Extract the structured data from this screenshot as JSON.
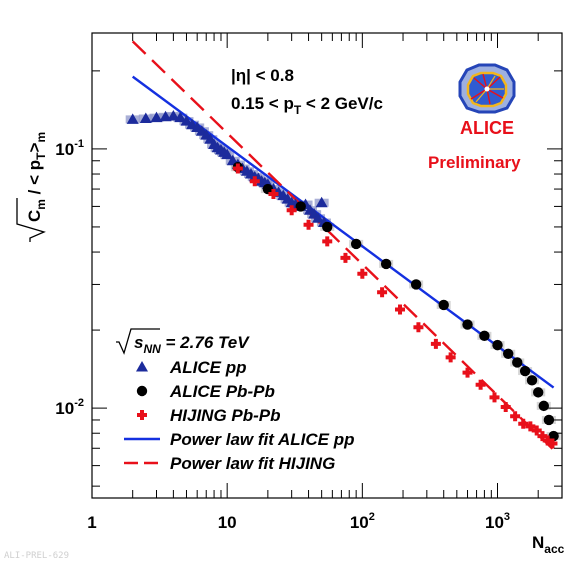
{
  "chart_data": {
    "type": "scatter",
    "xlabel": "N",
    "xlabel_sub": "acc",
    "ylabel_parts": {
      "root": "C",
      "root_sub": "m",
      "rest": " / < p",
      "rest_sub": "T",
      "close": ">",
      "close_sub": "m"
    },
    "xscale": "log",
    "yscale": "log",
    "xlim": [
      1,
      3000
    ],
    "ylim": [
      0.0045,
      0.28
    ],
    "x_ticks": [
      {
        "value": 1,
        "label": "1",
        "exp": ""
      },
      {
        "value": 10,
        "label": "10",
        "exp": ""
      },
      {
        "value": 100,
        "label": "10",
        "exp": "2"
      },
      {
        "value": 1000,
        "label": "10",
        "exp": "3"
      }
    ],
    "y_ticks": [
      {
        "value": 0.1,
        "label": "10",
        "exp": "-1"
      },
      {
        "value": 0.01,
        "label": "10",
        "exp": "-2"
      }
    ],
    "annotations": {
      "eta": "|η| < 0.8",
      "pt_prefix": "0.15 < p",
      "pt_sub": "T",
      "pt_suffix": " < 2 GeV/c",
      "preliminary": "Preliminary",
      "energy_sym": "s",
      "energy_sub": "NN",
      "energy_val": " = 2.76 TeV"
    },
    "legend": {
      "placement": "bottom-left",
      "entries": [
        {
          "label": "ALICE pp",
          "marker": "triangle",
          "color": "#1c2b9c"
        },
        {
          "label": "ALICE Pb-Pb",
          "marker": "circle",
          "color": "#000000"
        },
        {
          "label": "HIJING Pb-Pb",
          "marker": "cross",
          "color": "#e8101a"
        },
        {
          "label": "Power law fit ALICE pp",
          "marker": "solid-line",
          "color": "#1430e0"
        },
        {
          "label": "Power law fit HIJING",
          "marker": "dashed-line",
          "color": "#e8101a"
        }
      ]
    },
    "series": [
      {
        "name": "ALICE pp",
        "marker": "triangle",
        "color": "#1c2b9c",
        "band_color": "#8d96c9",
        "x": [
          2,
          2.5,
          3,
          3.5,
          4,
          4.5,
          5,
          5.5,
          6,
          6.5,
          7,
          7.5,
          8,
          8.5,
          9,
          9.5,
          10,
          11,
          12,
          13,
          14,
          15,
          16,
          17,
          18,
          19,
          20,
          22,
          24,
          26,
          28,
          30,
          32,
          35,
          38,
          41,
          44,
          47,
          50,
          52
        ],
        "y": [
          0.13,
          0.131,
          0.132,
          0.133,
          0.134,
          0.132,
          0.128,
          0.124,
          0.121,
          0.117,
          0.113,
          0.109,
          0.104,
          0.101,
          0.099,
          0.097,
          0.095,
          0.09,
          0.087,
          0.084,
          0.082,
          0.08,
          0.078,
          0.077,
          0.075,
          0.074,
          0.073,
          0.07,
          0.068,
          0.066,
          0.064,
          0.062,
          0.061,
          0.06,
          0.061,
          0.058,
          0.056,
          0.054,
          0.062,
          0.052
        ]
      },
      {
        "name": "ALICE Pb-Pb",
        "marker": "circle",
        "color": "#000000",
        "band_color": "#c8c8c8",
        "x": [
          12,
          20,
          35,
          55,
          90,
          150,
          250,
          400,
          600,
          800,
          1000,
          1200,
          1400,
          1600,
          1800,
          2000,
          2200,
          2400,
          2600
        ],
        "y": [
          0.085,
          0.07,
          0.06,
          0.05,
          0.043,
          0.036,
          0.03,
          0.025,
          0.021,
          0.019,
          0.0175,
          0.0162,
          0.015,
          0.0139,
          0.0128,
          0.0115,
          0.0102,
          0.009,
          0.0078
        ]
      },
      {
        "name": "HIJING Pb-Pb",
        "marker": "cross",
        "color": "#e8101a",
        "x": [
          12,
          16,
          22,
          30,
          40,
          55,
          75,
          100,
          140,
          190,
          260,
          350,
          450,
          600,
          750,
          950,
          1150,
          1350,
          1550,
          1750,
          1950,
          2150,
          2350,
          2550
        ],
        "y": [
          0.084,
          0.075,
          0.067,
          0.058,
          0.051,
          0.044,
          0.038,
          0.033,
          0.028,
          0.024,
          0.0205,
          0.0177,
          0.0157,
          0.0137,
          0.0123,
          0.011,
          0.0101,
          0.0093,
          0.0087,
          0.0085,
          0.0082,
          0.0078,
          0.0075,
          0.0073
        ]
      }
    ],
    "fits": [
      {
        "name": "Power law fit ALICE pp",
        "style": "solid",
        "color": "#1430e0",
        "x": [
          2,
          2600
        ],
        "y": [
          0.19,
          0.012
        ]
      },
      {
        "name": "Power law fit HIJING",
        "style": "dashed",
        "color": "#e8101a",
        "x": [
          2,
          2600
        ],
        "y": [
          0.26,
          0.0069
        ]
      }
    ]
  },
  "logo": {
    "text": "ALICE",
    "colors": {
      "blue": "#2545b8",
      "red": "#e8101a",
      "yellow": "#f3b61c",
      "bg": "#9eb0e0"
    }
  },
  "footer": {
    "label": "ALI-PREL-629"
  }
}
